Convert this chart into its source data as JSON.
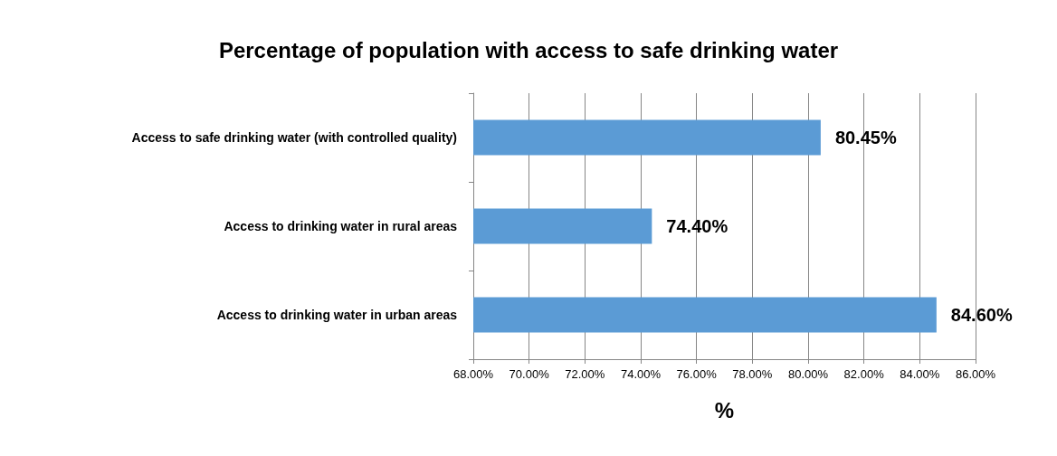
{
  "chart_data": {
    "type": "bar",
    "orientation": "horizontal",
    "title": "Percentage of population with access to safe drinking water",
    "xlabel": "%",
    "categories": [
      "Access to safe drinking water (with controlled quality)",
      "Access to drinking water in rural areas",
      "Access to drinking water in urban areas"
    ],
    "values": [
      80.45,
      74.4,
      84.6
    ],
    "color": "#5b9bd5",
    "value_labels": [
      "80.45%",
      "74.40%",
      "84.60%"
    ],
    "xlim": [
      68,
      86
    ],
    "xticks": [
      {
        "value": 68,
        "label": "68.00%"
      },
      {
        "value": 70,
        "label": "70.00%"
      },
      {
        "value": 72,
        "label": "72.00%"
      },
      {
        "value": 74,
        "label": "74.00%"
      },
      {
        "value": 76,
        "label": "76.00%"
      },
      {
        "value": 78,
        "label": "78.00%"
      },
      {
        "value": 80,
        "label": "80.00%"
      },
      {
        "value": 82,
        "label": "82.00%"
      },
      {
        "value": 84,
        "label": "84.00%"
      },
      {
        "value": 86,
        "label": "86.00%"
      }
    ],
    "grid": "x"
  }
}
